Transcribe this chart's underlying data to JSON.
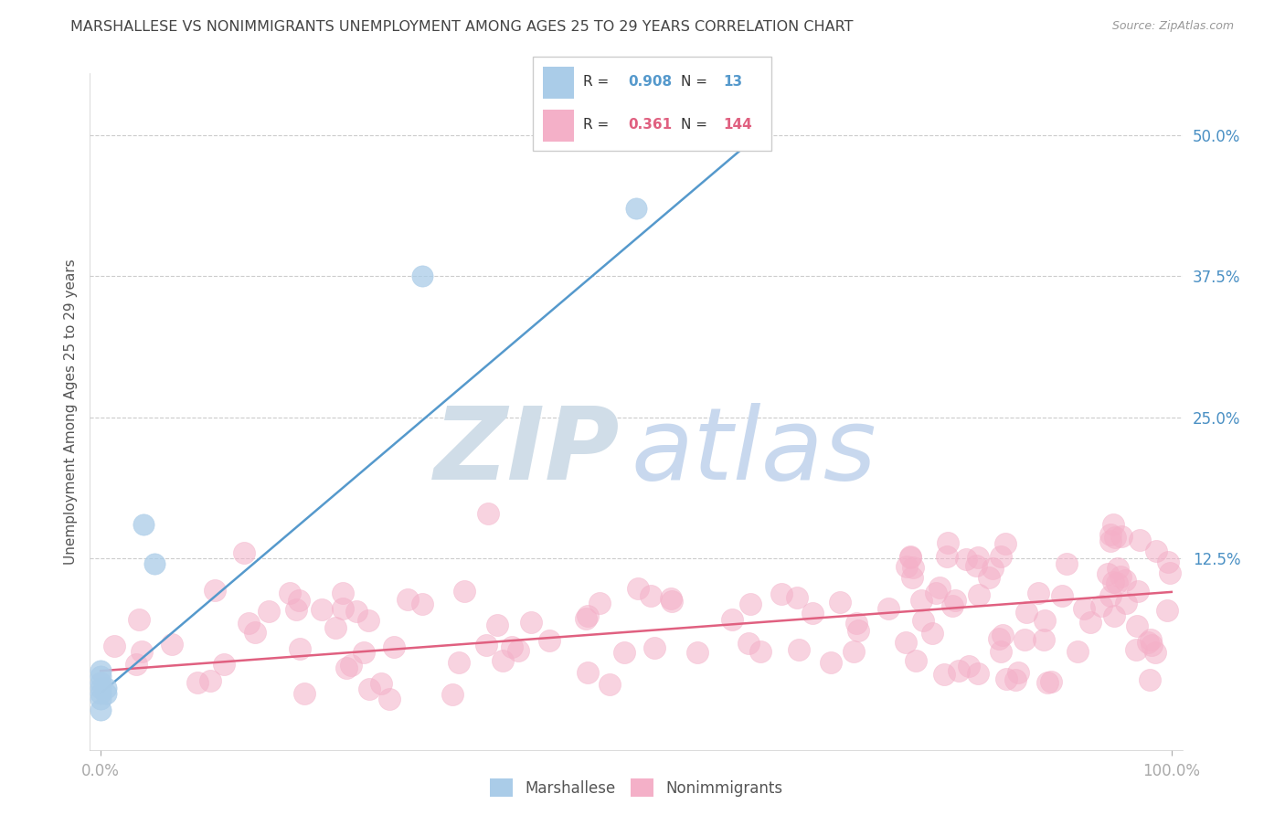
{
  "title": "MARSHALLESE VS NONIMMIGRANTS UNEMPLOYMENT AMONG AGES 25 TO 29 YEARS CORRELATION CHART",
  "source": "Source: ZipAtlas.com",
  "xlabel_ticks": [
    "0.0%",
    "100.0%"
  ],
  "ylabel_label": "Unemployment Among Ages 25 to 29 years",
  "right_yticks": [
    "50.0%",
    "37.5%",
    "25.0%",
    "12.5%"
  ],
  "right_ytick_vals": [
    0.5,
    0.375,
    0.25,
    0.125
  ],
  "xlim": [
    -0.01,
    1.01
  ],
  "ylim": [
    -0.045,
    0.555
  ],
  "legend_blue_r": "0.908",
  "legend_blue_n": "13",
  "legend_pink_r": "0.361",
  "legend_pink_n": "144",
  "blue_color": "#aacce8",
  "pink_color": "#f4b0c8",
  "blue_line_color": "#5599cc",
  "pink_line_color": "#e06080",
  "watermark_zip_color": "#d0dde8",
  "watermark_atlas_color": "#c8d8ee",
  "background_color": "#ffffff",
  "grid_color": "#cccccc",
  "title_color": "#444444",
  "axis_label_color": "#4a90c4",
  "blue_scatter_x": [
    0.0,
    0.0,
    0.0,
    0.0,
    0.0,
    0.0,
    0.0,
    0.005,
    0.005,
    0.04,
    0.05,
    0.3,
    0.5
  ],
  "blue_scatter_y": [
    0.01,
    0.015,
    0.02,
    0.025,
    0.005,
    0.0,
    -0.01,
    0.01,
    0.005,
    0.155,
    0.12,
    0.375,
    0.435
  ],
  "blue_line_x": [
    0.0,
    0.62
  ],
  "blue_line_y": [
    0.005,
    0.505
  ],
  "pink_line_x": [
    0.0,
    1.0
  ],
  "pink_line_y": [
    0.025,
    0.095
  ]
}
